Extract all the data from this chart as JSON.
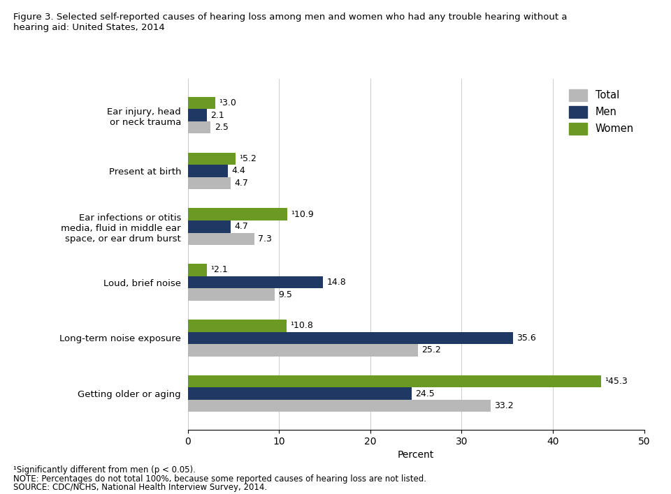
{
  "title": "Figure 3. Selected self-reported causes of hearing loss among men and women who had any trouble hearing without a\nhearing aid: United States, 2014",
  "categories": [
    "Ear injury, head\nor neck trauma",
    "Present at birth",
    "Ear infections or otitis\nmedia, fluid in middle ear\nspace, or ear drum burst",
    "Loud, brief noise",
    "Long-term noise exposure",
    "Getting older or aging"
  ],
  "total": [
    2.5,
    4.7,
    7.3,
    9.5,
    25.2,
    33.2
  ],
  "men": [
    2.1,
    4.4,
    4.7,
    14.8,
    35.6,
    24.5
  ],
  "women": [
    3.0,
    5.2,
    10.9,
    2.1,
    10.8,
    45.3
  ],
  "total_labels": [
    "2.5",
    "4.7",
    "7.3",
    "9.5",
    "25.2",
    "33.2"
  ],
  "men_labels": [
    "2.1",
    "4.4",
    "4.7",
    "14.8",
    "35.6",
    "24.5"
  ],
  "women_labels": [
    "¹3.0",
    "¹5.2",
    "¹10.9",
    "¹2.1",
    "¹10.8",
    "¹45.3"
  ],
  "colors": {
    "total": "#b8b8b8",
    "men": "#1f3864",
    "women": "#6a9a23"
  },
  "xlabel": "Percent",
  "xlim": [
    0,
    50
  ],
  "xticks": [
    0,
    10,
    20,
    30,
    40,
    50
  ],
  "bar_height": 0.22,
  "footnote1": "¹Significantly different from men (p < 0.05).",
  "footnote2": "NOTE: Percentages do not total 100%, because some reported causes of hearing loss are not listed.",
  "footnote3": "SOURCE: CDC/NCHS, National Health Interview Survey, 2014.",
  "legend_labels": [
    "Total",
    "Men",
    "Women"
  ],
  "background_color": "#ffffff",
  "title_fontsize": 9.5,
  "label_fontsize": 9,
  "axis_fontsize": 9.5,
  "footnote_fontsize": 8.5
}
